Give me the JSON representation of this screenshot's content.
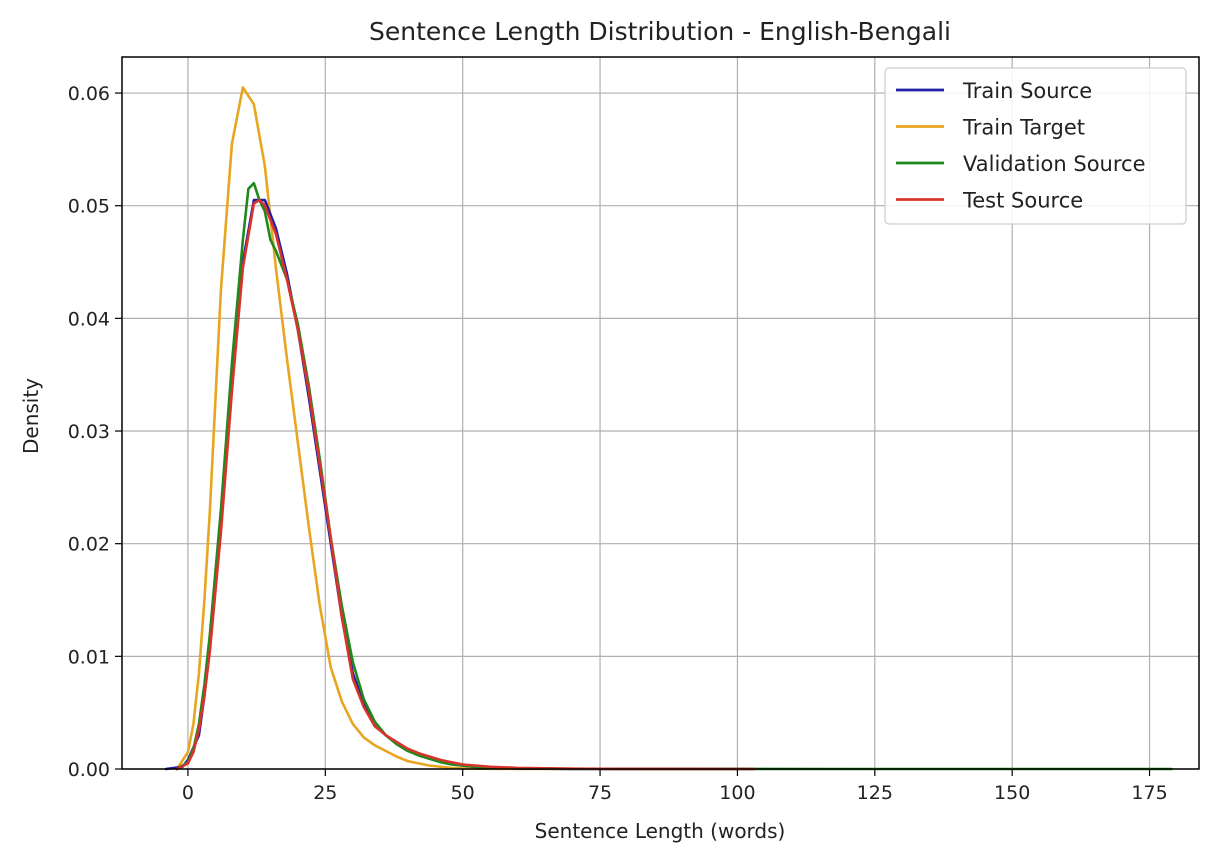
{
  "chart_data": {
    "type": "line",
    "title": "Sentence Length Distribution - English-Bengali",
    "xlabel": "Sentence Length (words)",
    "ylabel": "Density",
    "xlim": [
      -12,
      184
    ],
    "ylim": [
      0,
      0.0632
    ],
    "xticks": [
      0,
      25,
      50,
      75,
      100,
      125,
      150,
      175
    ],
    "xtick_labels": [
      "0",
      "25",
      "50",
      "75",
      "100",
      "125",
      "150",
      "175"
    ],
    "yticks": [
      0,
      0.01,
      0.02,
      0.03,
      0.04,
      0.05,
      0.06
    ],
    "ytick_labels": [
      "0.00",
      "0.01",
      "0.02",
      "0.03",
      "0.04",
      "0.05",
      "0.06"
    ],
    "grid": true,
    "legend_position": "top-right",
    "series": [
      {
        "name": "Train Source",
        "color": "#1f1fa8",
        "x": [
          -4,
          -1,
          0,
          2,
          3,
          4,
          6,
          8,
          10,
          12,
          14,
          16,
          18,
          20,
          22,
          24,
          26,
          28,
          30,
          32,
          34,
          36,
          38,
          40,
          42,
          44,
          46,
          48,
          50,
          52,
          55,
          60,
          65,
          70,
          80,
          90,
          103
        ],
        "y": [
          0,
          0.0002,
          0.0008,
          0.003,
          0.0065,
          0.011,
          0.022,
          0.034,
          0.045,
          0.0505,
          0.0505,
          0.048,
          0.044,
          0.039,
          0.033,
          0.0265,
          0.02,
          0.0135,
          0.0085,
          0.0058,
          0.004,
          0.003,
          0.0023,
          0.0017,
          0.0013,
          0.001,
          0.0007,
          0.0005,
          0.0003,
          0.0002,
          0.0001,
          5e-05,
          3e-05,
          1e-05,
          1e-05,
          1e-05,
          0
        ]
      },
      {
        "name": "Train Target",
        "color": "#e8a620",
        "x": [
          -2,
          0,
          1,
          2,
          3,
          4,
          6,
          8,
          10,
          12,
          14,
          16,
          18,
          20,
          22,
          24,
          26,
          28,
          30,
          32,
          34,
          36,
          38,
          40,
          42,
          44,
          46,
          48,
          50,
          55,
          60,
          70
        ],
        "y": [
          0,
          0.0015,
          0.004,
          0.0085,
          0.015,
          0.023,
          0.0425,
          0.0555,
          0.0605,
          0.059,
          0.0535,
          0.0445,
          0.0365,
          0.029,
          0.0215,
          0.0145,
          0.009,
          0.006,
          0.004,
          0.0028,
          0.0021,
          0.0016,
          0.0011,
          0.0007,
          0.0005,
          0.0003,
          0.0002,
          0.0001,
          5e-05,
          2e-05,
          1e-05,
          0
        ]
      },
      {
        "name": "Validation Source",
        "color": "#1e8a1e",
        "x": [
          -2,
          0,
          1,
          2,
          3,
          4,
          6,
          8,
          10,
          11,
          12,
          13,
          14,
          15,
          16,
          18,
          20,
          22,
          24,
          26,
          28,
          30,
          32,
          34,
          36,
          38,
          40,
          42,
          44,
          46,
          48,
          50,
          55,
          60,
          70,
          80,
          100,
          120,
          150,
          179
        ],
        "y": [
          0,
          0.0006,
          0.0018,
          0.004,
          0.0075,
          0.012,
          0.023,
          0.036,
          0.047,
          0.0515,
          0.052,
          0.0505,
          0.0495,
          0.047,
          0.046,
          0.0435,
          0.0395,
          0.034,
          0.0275,
          0.0205,
          0.0145,
          0.0095,
          0.0062,
          0.0042,
          0.003,
          0.0022,
          0.0016,
          0.0012,
          0.0009,
          0.0006,
          0.0004,
          0.0003,
          0.0001,
          5e-05,
          2e-05,
          1e-05,
          1e-05,
          0,
          0,
          0
        ]
      },
      {
        "name": "Test Source",
        "color": "#d9342b",
        "x": [
          -2,
          0,
          1,
          2,
          3,
          4,
          6,
          8,
          10,
          12,
          13,
          14,
          16,
          18,
          20,
          22,
          24,
          26,
          28,
          30,
          32,
          34,
          36,
          38,
          40,
          42,
          44,
          46,
          48,
          50,
          55,
          60,
          70,
          80,
          90,
          100,
          103
        ],
        "y": [
          0,
          0.0005,
          0.0015,
          0.0035,
          0.0065,
          0.0105,
          0.021,
          0.0335,
          0.0445,
          0.0502,
          0.0505,
          0.05,
          0.0475,
          0.0435,
          0.039,
          0.0335,
          0.027,
          0.0205,
          0.0135,
          0.008,
          0.0055,
          0.0038,
          0.003,
          0.0024,
          0.0018,
          0.0014,
          0.0011,
          0.0008,
          0.0006,
          0.0004,
          0.0002,
          0.0001,
          3e-05,
          1e-05,
          1e-05,
          0,
          0
        ]
      }
    ]
  }
}
